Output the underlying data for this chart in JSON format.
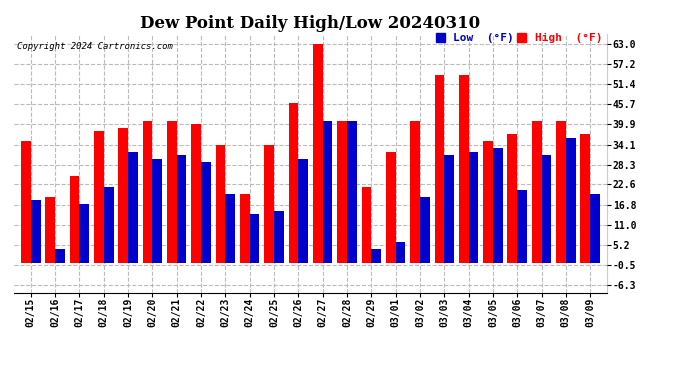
{
  "title": "Dew Point Daily High/Low 20240310",
  "copyright": "Copyright 2024 Cartronics.com",
  "dates": [
    "02/15",
    "02/16",
    "02/17",
    "02/18",
    "02/19",
    "02/20",
    "02/21",
    "02/22",
    "02/23",
    "02/24",
    "02/25",
    "02/26",
    "02/27",
    "02/28",
    "02/29",
    "03/01",
    "03/02",
    "03/03",
    "03/04",
    "03/05",
    "03/06",
    "03/07",
    "03/08",
    "03/09"
  ],
  "high": [
    35.0,
    19.0,
    25.0,
    38.0,
    39.0,
    41.0,
    41.0,
    40.0,
    34.0,
    20.0,
    34.0,
    46.0,
    63.0,
    41.0,
    22.0,
    32.0,
    41.0,
    54.0,
    54.0,
    35.0,
    37.0,
    41.0,
    41.0,
    37.0
  ],
  "low": [
    18.0,
    4.0,
    17.0,
    22.0,
    32.0,
    30.0,
    31.0,
    29.0,
    20.0,
    14.0,
    15.0,
    30.0,
    41.0,
    41.0,
    4.0,
    6.0,
    19.0,
    31.0,
    32.0,
    33.0,
    21.0,
    31.0,
    36.0,
    20.0
  ],
  "high_color": "#ff0000",
  "low_color": "#0000cc",
  "bg_color": "#ffffff",
  "yticks": [
    -6.3,
    -0.5,
    5.2,
    11.0,
    16.8,
    22.6,
    28.3,
    34.1,
    39.9,
    45.7,
    51.4,
    57.2,
    63.0
  ],
  "ylim": [
    -8.5,
    66.0
  ],
  "grid_color": "#bbbbbb",
  "title_fontsize": 12,
  "label_fontsize": 8,
  "tick_fontsize": 7,
  "bar_width": 0.4
}
